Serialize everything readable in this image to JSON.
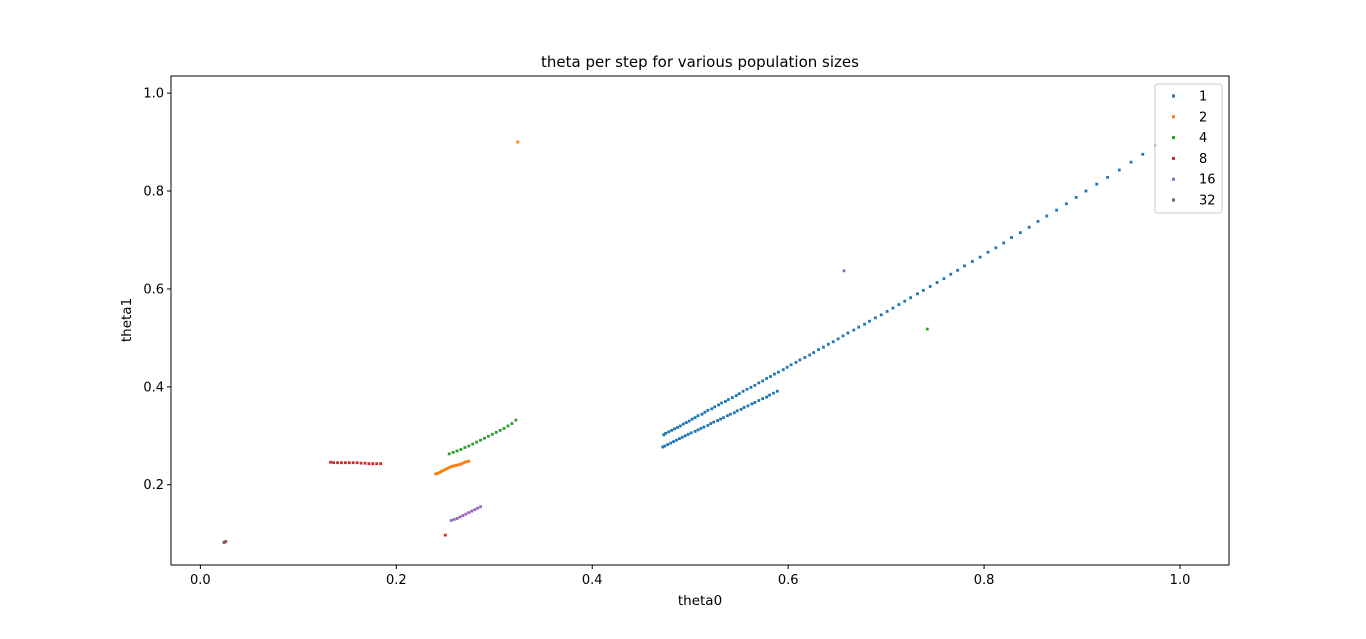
{
  "chart_data": {
    "type": "scatter",
    "title": "theta per step for various population sizes",
    "xlabel": "theta0",
    "ylabel": "theta1",
    "xlim": [
      -0.03,
      1.05
    ],
    "ylim": [
      0.036,
      1.035
    ],
    "xticks": [
      0.0,
      0.2,
      0.4,
      0.6,
      0.8,
      1.0
    ],
    "yticks": [
      0.2,
      0.4,
      0.6,
      0.8,
      1.0
    ],
    "xtick_labels": [
      "0.0",
      "0.2",
      "0.4",
      "0.6",
      "0.8",
      "1.0"
    ],
    "ytick_labels": [
      "0.2",
      "0.4",
      "0.6",
      "0.8",
      "1.0"
    ],
    "grid": false,
    "legend_position": "top-right",
    "series": [
      {
        "name": "1",
        "color": "#1f77b4",
        "points": [
          [
            0.975,
            0.893
          ],
          [
            0.962,
            0.875
          ],
          [
            0.95,
            0.859
          ],
          [
            0.938,
            0.843
          ],
          [
            0.926,
            0.828
          ],
          [
            0.915,
            0.814
          ],
          [
            0.904,
            0.8
          ],
          [
            0.894,
            0.787
          ],
          [
            0.884,
            0.774
          ],
          [
            0.874,
            0.761
          ],
          [
            0.864,
            0.749
          ],
          [
            0.855,
            0.738
          ],
          [
            0.846,
            0.726
          ],
          [
            0.837,
            0.715
          ],
          [
            0.828,
            0.705
          ],
          [
            0.82,
            0.694
          ],
          [
            0.812,
            0.684
          ],
          [
            0.804,
            0.675
          ],
          [
            0.796,
            0.665
          ],
          [
            0.788,
            0.656
          ],
          [
            0.78,
            0.647
          ],
          [
            0.773,
            0.638
          ],
          [
            0.766,
            0.63
          ],
          [
            0.759,
            0.621
          ],
          [
            0.752,
            0.613
          ],
          [
            0.745,
            0.605
          ],
          [
            0.738,
            0.597
          ],
          [
            0.732,
            0.59
          ],
          [
            0.725,
            0.582
          ],
          [
            0.719,
            0.575
          ],
          [
            0.713,
            0.568
          ],
          [
            0.707,
            0.561
          ],
          [
            0.701,
            0.554
          ],
          [
            0.695,
            0.547
          ],
          [
            0.689,
            0.541
          ],
          [
            0.683,
            0.534
          ],
          [
            0.678,
            0.528
          ],
          [
            0.672,
            0.522
          ],
          [
            0.667,
            0.516
          ],
          [
            0.661,
            0.51
          ],
          [
            0.656,
            0.504
          ],
          [
            0.651,
            0.498
          ],
          [
            0.646,
            0.492
          ],
          [
            0.641,
            0.487
          ],
          [
            0.636,
            0.481
          ],
          [
            0.631,
            0.476
          ],
          [
            0.626,
            0.47
          ],
          [
            0.622,
            0.465
          ],
          [
            0.617,
            0.46
          ],
          [
            0.612,
            0.455
          ],
          [
            0.608,
            0.45
          ],
          [
            0.603,
            0.445
          ],
          [
            0.599,
            0.44
          ],
          [
            0.595,
            0.435
          ],
          [
            0.59,
            0.43
          ],
          [
            0.586,
            0.426
          ],
          [
            0.582,
            0.421
          ],
          [
            0.578,
            0.417
          ],
          [
            0.574,
            0.412
          ],
          [
            0.57,
            0.408
          ],
          [
            0.566,
            0.403
          ],
          [
            0.562,
            0.399
          ],
          [
            0.558,
            0.395
          ],
          [
            0.554,
            0.391
          ],
          [
            0.55,
            0.386
          ],
          [
            0.547,
            0.382
          ],
          [
            0.543,
            0.378
          ],
          [
            0.539,
            0.374
          ],
          [
            0.536,
            0.37
          ],
          [
            0.532,
            0.367
          ],
          [
            0.529,
            0.363
          ],
          [
            0.525,
            0.359
          ],
          [
            0.522,
            0.355
          ],
          [
            0.518,
            0.352
          ],
          [
            0.515,
            0.348
          ],
          [
            0.512,
            0.344
          ],
          [
            0.508,
            0.341
          ],
          [
            0.505,
            0.337
          ],
          [
            0.502,
            0.334
          ],
          [
            0.499,
            0.33
          ],
          [
            0.496,
            0.327
          ],
          [
            0.493,
            0.324
          ],
          [
            0.49,
            0.32
          ],
          [
            0.487,
            0.317
          ],
          [
            0.484,
            0.314
          ],
          [
            0.481,
            0.311
          ],
          [
            0.478,
            0.308
          ],
          [
            0.475,
            0.305
          ],
          [
            0.473,
            0.302
          ],
          [
            0.472,
            0.277
          ],
          [
            0.474,
            0.279
          ],
          [
            0.477,
            0.282
          ],
          [
            0.48,
            0.285
          ],
          [
            0.483,
            0.288
          ],
          [
            0.486,
            0.291
          ],
          [
            0.489,
            0.294
          ],
          [
            0.492,
            0.297
          ],
          [
            0.495,
            0.3
          ],
          [
            0.498,
            0.303
          ],
          [
            0.501,
            0.306
          ],
          [
            0.505,
            0.309
          ],
          [
            0.508,
            0.312
          ],
          [
            0.511,
            0.315
          ],
          [
            0.514,
            0.318
          ],
          [
            0.518,
            0.321
          ],
          [
            0.521,
            0.325
          ],
          [
            0.524,
            0.328
          ],
          [
            0.528,
            0.331
          ],
          [
            0.531,
            0.334
          ],
          [
            0.534,
            0.337
          ],
          [
            0.538,
            0.341
          ],
          [
            0.541,
            0.344
          ],
          [
            0.545,
            0.347
          ],
          [
            0.548,
            0.351
          ],
          [
            0.552,
            0.354
          ],
          [
            0.555,
            0.358
          ],
          [
            0.559,
            0.361
          ],
          [
            0.563,
            0.365
          ],
          [
            0.566,
            0.368
          ],
          [
            0.57,
            0.372
          ],
          [
            0.574,
            0.376
          ],
          [
            0.578,
            0.379
          ],
          [
            0.581,
            0.383
          ],
          [
            0.585,
            0.387
          ],
          [
            0.589,
            0.391
          ]
        ]
      },
      {
        "name": "2",
        "color": "#ff7f0e",
        "points": [
          [
            0.324,
            0.9
          ],
          [
            0.24,
            0.222
          ],
          [
            0.242,
            0.223
          ],
          [
            0.244,
            0.225
          ],
          [
            0.246,
            0.227
          ],
          [
            0.248,
            0.229
          ],
          [
            0.25,
            0.231
          ],
          [
            0.252,
            0.233
          ],
          [
            0.254,
            0.235
          ],
          [
            0.256,
            0.237
          ],
          [
            0.258,
            0.238
          ],
          [
            0.26,
            0.239
          ],
          [
            0.262,
            0.24
          ],
          [
            0.264,
            0.241
          ],
          [
            0.266,
            0.242
          ],
          [
            0.268,
            0.244
          ],
          [
            0.27,
            0.246
          ],
          [
            0.272,
            0.247
          ],
          [
            0.274,
            0.248
          ]
        ]
      },
      {
        "name": "4",
        "color": "#2ca02c",
        "points": [
          [
            0.742,
            0.518
          ],
          [
            0.254,
            0.263
          ],
          [
            0.258,
            0.266
          ],
          [
            0.262,
            0.269
          ],
          [
            0.266,
            0.272
          ],
          [
            0.27,
            0.276
          ],
          [
            0.274,
            0.279
          ],
          [
            0.278,
            0.283
          ],
          [
            0.282,
            0.287
          ],
          [
            0.286,
            0.291
          ],
          [
            0.29,
            0.295
          ],
          [
            0.294,
            0.299
          ],
          [
            0.298,
            0.303
          ],
          [
            0.302,
            0.307
          ],
          [
            0.306,
            0.311
          ],
          [
            0.31,
            0.315
          ],
          [
            0.314,
            0.32
          ],
          [
            0.318,
            0.325
          ],
          [
            0.322,
            0.332
          ]
        ]
      },
      {
        "name": "8",
        "color": "#d62728",
        "points": [
          [
            0.25,
            0.097
          ],
          [
            0.133,
            0.246
          ],
          [
            0.136,
            0.245
          ],
          [
            0.14,
            0.245
          ],
          [
            0.144,
            0.245
          ],
          [
            0.148,
            0.245
          ],
          [
            0.152,
            0.245
          ],
          [
            0.156,
            0.245
          ],
          [
            0.16,
            0.245
          ],
          [
            0.164,
            0.244
          ],
          [
            0.168,
            0.244
          ],
          [
            0.172,
            0.243
          ],
          [
            0.176,
            0.243
          ],
          [
            0.18,
            0.243
          ],
          [
            0.184,
            0.243
          ]
        ]
      },
      {
        "name": "16",
        "color": "#9467bd",
        "points": [
          [
            0.256,
            0.127
          ],
          [
            0.259,
            0.129
          ],
          [
            0.262,
            0.131
          ],
          [
            0.265,
            0.134
          ],
          [
            0.268,
            0.137
          ],
          [
            0.271,
            0.14
          ],
          [
            0.274,
            0.143
          ],
          [
            0.277,
            0.146
          ],
          [
            0.28,
            0.149
          ],
          [
            0.283,
            0.152
          ],
          [
            0.286,
            0.155
          ],
          [
            0.657,
            0.637
          ]
        ]
      },
      {
        "name": "32",
        "color": "#8c564b",
        "points": [
          [
            0.024,
            0.082
          ],
          [
            0.025,
            0.083
          ],
          [
            0.026,
            0.084
          ]
        ]
      }
    ]
  }
}
